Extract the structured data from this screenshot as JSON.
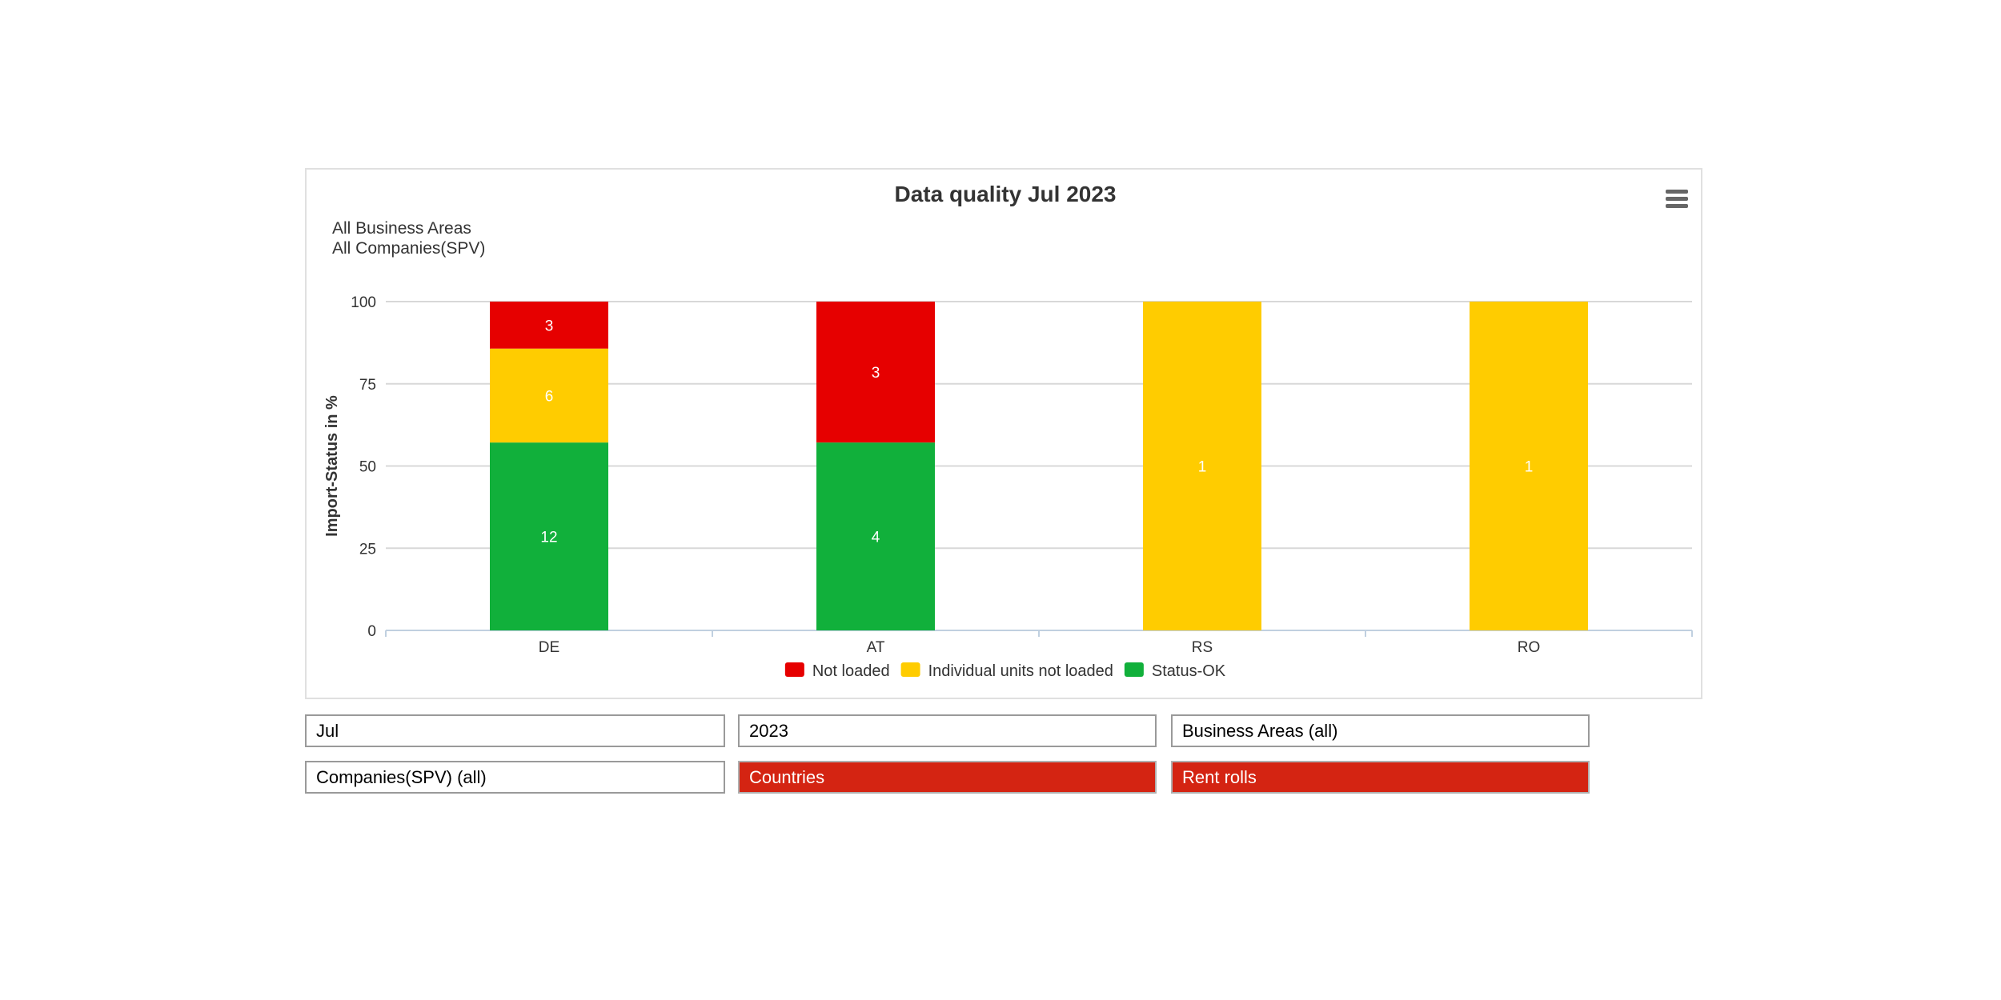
{
  "chart_data": {
    "type": "bar",
    "stacked": "percent",
    "title": "Data quality Jul 2023",
    "subtitle": [
      "All Business Areas",
      "All Companies(SPV)"
    ],
    "ylabel": "Import-Status in %",
    "xlabel": "",
    "ylim": [
      0,
      100
    ],
    "yticks": [
      0,
      25,
      50,
      75,
      100
    ],
    "categories": [
      "DE",
      "AT",
      "RS",
      "RO"
    ],
    "grid": true,
    "legend_position": "bottom-center",
    "series": [
      {
        "name": "Not loaded",
        "color": "#e60000",
        "values": [
          3,
          3,
          0,
          0
        ]
      },
      {
        "name": "Individual units not loaded",
        "color": "#ffcc00",
        "values": [
          6,
          0,
          1,
          1
        ]
      },
      {
        "name": "Status-OK",
        "color": "#11b03b",
        "values": [
          12,
          4,
          0,
          0
        ]
      }
    ]
  },
  "menu_icon": "hamburger-menu-icon",
  "controls": {
    "month": "Jul",
    "year": "2023",
    "business_areas": "Business Areas (all)",
    "companies": "Companies(SPV) (all)",
    "countries": "Countries",
    "rent_rolls": "Rent rolls"
  },
  "colors": {
    "active_button": "#d42412"
  }
}
